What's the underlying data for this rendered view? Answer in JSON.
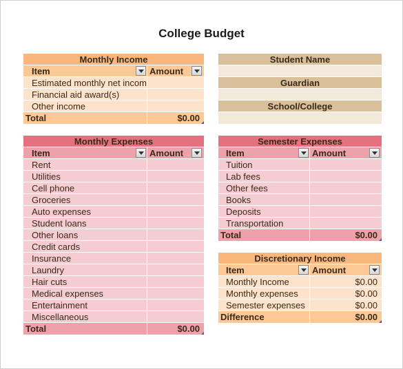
{
  "title": "College Budget",
  "monthly_income": {
    "heading": "Monthly Income",
    "col_item": "Item",
    "col_amount": "Amount",
    "rows": [
      "Estimated monthly net income",
      "Financial aid award(s)",
      "Other income"
    ],
    "total_label": "Total",
    "total_value": "$0.00"
  },
  "student_info": {
    "labels": [
      "Student Name",
      "Guardian",
      "School/College"
    ]
  },
  "monthly_expenses": {
    "heading": "Monthly Expenses",
    "col_item": "Item",
    "col_amount": "Amount",
    "rows": [
      "Rent",
      "Utilities",
      "Cell phone",
      "Groceries",
      "Auto expenses",
      "Student loans",
      "Other loans",
      "Credit cards",
      "Insurance",
      "Laundry",
      "Hair cuts",
      "Medical expenses",
      "Entertainment",
      "Miscellaneous"
    ],
    "total_label": "Total",
    "total_value": "$0.00"
  },
  "semester_expenses": {
    "heading": "Semester Expenses",
    "col_item": "Item",
    "col_amount": "Amount",
    "rows": [
      "Tuition",
      "Lab fees",
      "Other fees",
      "Books",
      "Deposits",
      "Transportation"
    ],
    "total_label": "Total",
    "total_value": "$0.00"
  },
  "discretionary_income": {
    "heading": "Discretionary Income",
    "col_item": "Item",
    "col_amount": "Amount",
    "rows": [
      {
        "item": "Monthly Income",
        "amount": "$0.00"
      },
      {
        "item": "Monthly expenses",
        "amount": "$0.00"
      },
      {
        "item": "Semester expenses",
        "amount": "$0.00"
      }
    ],
    "total_label": "Difference",
    "total_value": "$0.00"
  },
  "colors": {
    "orange_title": "#f9b77b",
    "orange_header": "#fbc896",
    "orange_body": "#fde3cc",
    "pink_title": "#e5717f",
    "pink_header": "#eda1aa",
    "pink_body": "#f4ccd1",
    "tan_label": "#d9c09a",
    "tan_blank": "#f3e9db"
  }
}
